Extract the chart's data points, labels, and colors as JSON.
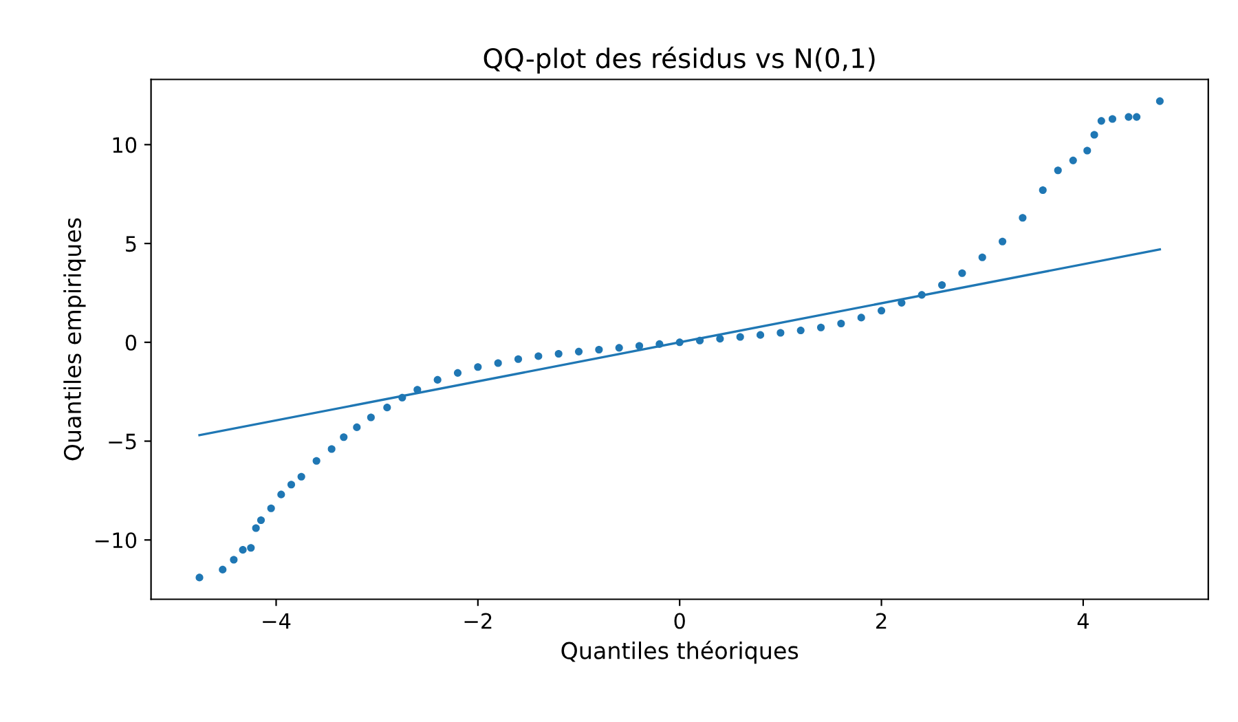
{
  "chart_data": {
    "type": "scatter",
    "title": "QQ-plot des résidus vs N(0,1)",
    "xlabel": "Quantiles théoriques",
    "ylabel": "Quantiles empiriques",
    "series": [
      {
        "marker": "circle",
        "color": "#1f77b4",
        "x": [
          -4.76,
          -4.53,
          -4.42,
          -4.33,
          -4.25,
          -4.2,
          -4.15,
          -4.05,
          -3.95,
          -3.85,
          -3.75,
          -3.6,
          -3.45,
          -3.33,
          -3.2,
          -3.06,
          -2.9,
          -2.75,
          -2.6,
          -2.4,
          -2.2,
          -2.0,
          -1.8,
          -1.6,
          -1.4,
          -1.2,
          -1.0,
          -0.8,
          -0.6,
          -0.4,
          -0.2,
          0,
          0.2,
          0.4,
          0.6,
          0.8,
          1.0,
          1.2,
          1.4,
          1.6,
          1.8,
          2.0,
          2.2,
          2.4,
          2.6,
          2.8,
          3.0,
          3.2,
          3.4,
          3.6,
          3.75,
          3.9,
          4.04,
          4.11,
          4.18,
          4.29,
          4.45,
          4.53,
          4.76
        ],
        "values": [
          -11.9,
          -11.5,
          -11.0,
          -10.5,
          -10.4,
          -9.4,
          -9.0,
          -8.4,
          -7.7,
          -7.2,
          -6.8,
          -6.0,
          -5.4,
          -4.8,
          -4.3,
          -3.8,
          -3.3,
          -2.8,
          -2.4,
          -1.9,
          -1.55,
          -1.25,
          -1.05,
          -0.85,
          -0.7,
          -0.58,
          -0.47,
          -0.37,
          -0.28,
          -0.18,
          -0.09,
          0,
          0.09,
          0.18,
          0.27,
          0.37,
          0.48,
          0.6,
          0.75,
          0.95,
          1.25,
          1.6,
          2.0,
          2.4,
          2.9,
          3.5,
          4.3,
          5.1,
          6.3,
          7.7,
          8.7,
          9.2,
          9.7,
          10.5,
          11.2,
          11.3,
          11.4,
          11.4,
          12.2
        ]
      },
      {
        "type": "line",
        "color": "#1f77b4",
        "x": [
          -4.76,
          4.76
        ],
        "values": [
          -4.7,
          4.7
        ]
      }
    ],
    "xlim": [
      -5.24,
      5.24
    ],
    "ylim": [
      -13.0,
      13.3
    ],
    "xticks": [
      {
        "value": -4,
        "label": "−4"
      },
      {
        "value": -2,
        "label": "−2"
      },
      0,
      2,
      4
    ],
    "yticks": [
      {
        "value": -10,
        "label": "−10"
      },
      {
        "value": -5,
        "label": "−5"
      },
      0,
      5,
      10
    ],
    "grid": false
  }
}
